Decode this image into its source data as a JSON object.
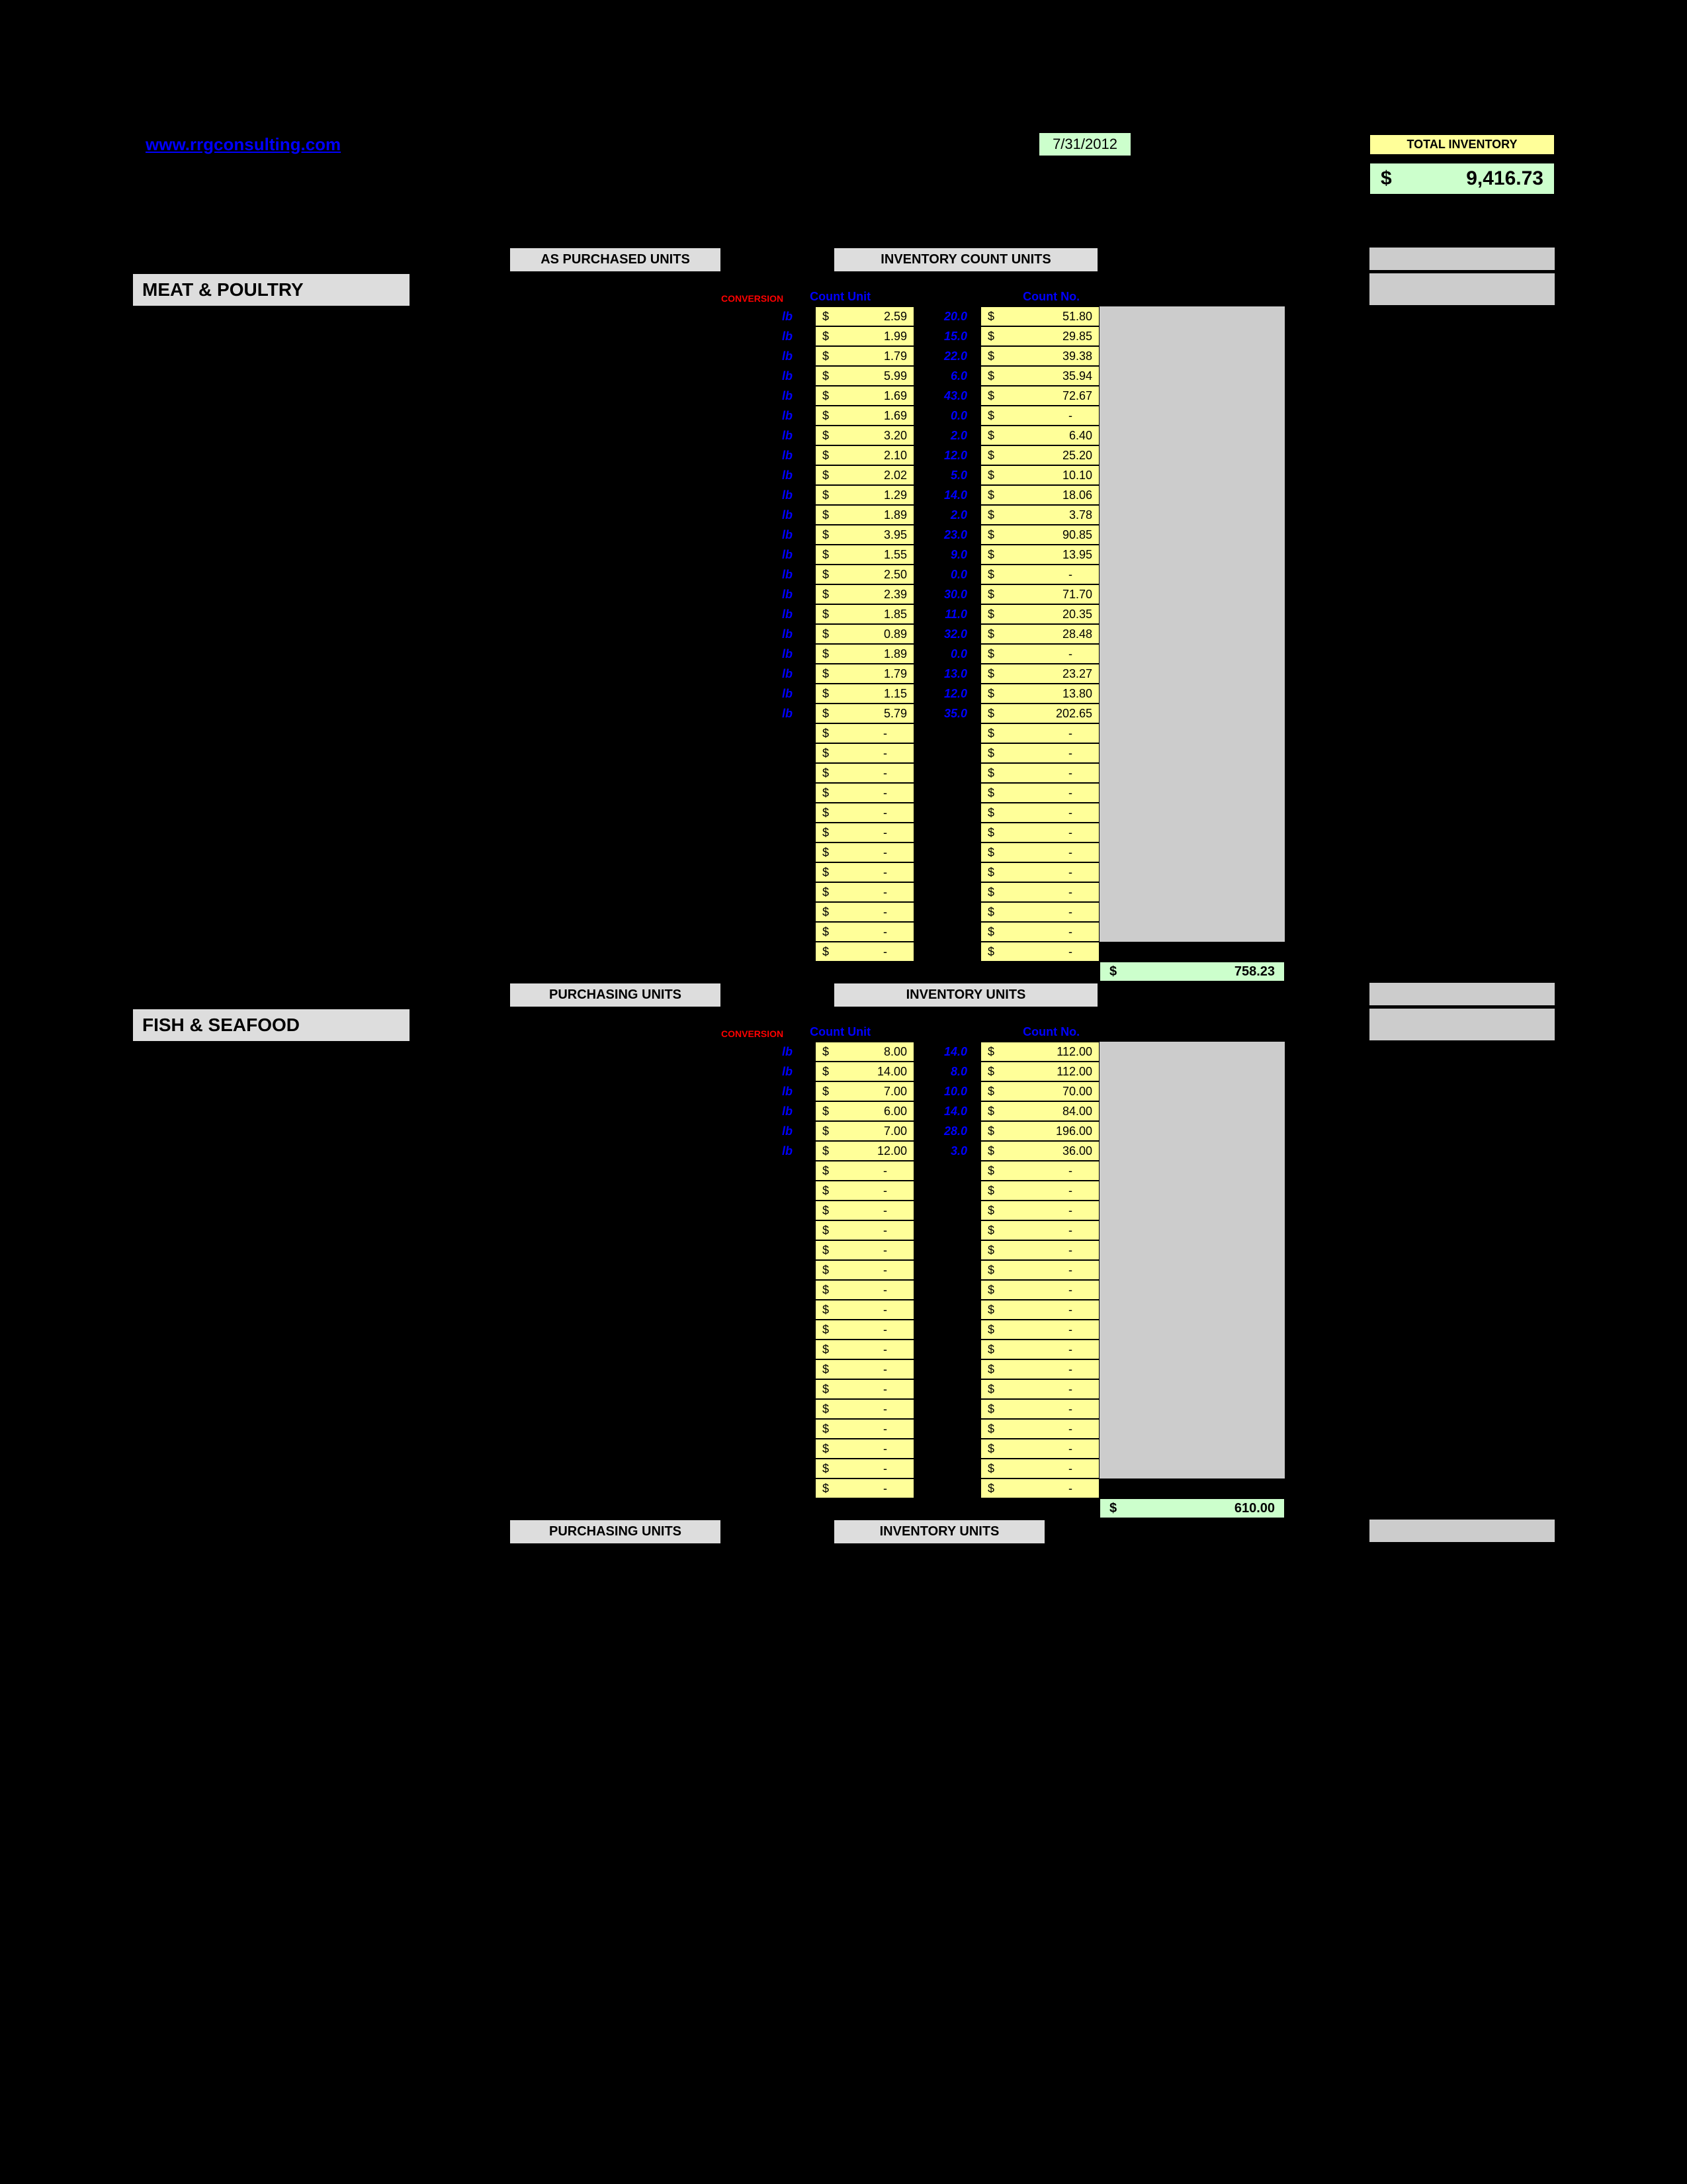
{
  "header": {
    "url": "www.rrgconsulting.com",
    "date": "7/31/2012",
    "total_inventory_label": "TOTAL INVENTORY",
    "total_inventory_value": "9,416.73"
  },
  "labels": {
    "as_purchased": "AS PURCHASED UNITS",
    "inv_count": "INVENTORY COUNT UNITS",
    "purchasing_units": "PURCHASING UNITS",
    "inventory_units": "INVENTORY UNITS",
    "conversion": "CONVERSION",
    "count_unit": "Count Unit",
    "count_no": "Count No."
  },
  "sections": [
    {
      "title": "MEAT & POULTRY",
      "header_left": "AS PURCHASED UNITS",
      "header_right": "INVENTORY COUNT UNITS",
      "subtotal": "758.23",
      "rows": [
        {
          "unit": "lb",
          "price": "2.59",
          "count": "20.0",
          "ext": "51.80"
        },
        {
          "unit": "lb",
          "price": "1.99",
          "count": "15.0",
          "ext": "29.85"
        },
        {
          "unit": "lb",
          "price": "1.79",
          "count": "22.0",
          "ext": "39.38"
        },
        {
          "unit": "lb",
          "price": "5.99",
          "count": "6.0",
          "ext": "35.94"
        },
        {
          "unit": "lb",
          "price": "1.69",
          "count": "43.0",
          "ext": "72.67"
        },
        {
          "unit": "lb",
          "price": "1.69",
          "count": "0.0",
          "ext": "-"
        },
        {
          "unit": "lb",
          "price": "3.20",
          "count": "2.0",
          "ext": "6.40"
        },
        {
          "unit": "lb",
          "price": "2.10",
          "count": "12.0",
          "ext": "25.20"
        },
        {
          "unit": "lb",
          "price": "2.02",
          "count": "5.0",
          "ext": "10.10"
        },
        {
          "unit": "lb",
          "price": "1.29",
          "count": "14.0",
          "ext": "18.06"
        },
        {
          "unit": "lb",
          "price": "1.89",
          "count": "2.0",
          "ext": "3.78"
        },
        {
          "unit": "lb",
          "price": "3.95",
          "count": "23.0",
          "ext": "90.85"
        },
        {
          "unit": "lb",
          "price": "1.55",
          "count": "9.0",
          "ext": "13.95"
        },
        {
          "unit": "lb",
          "price": "2.50",
          "count": "0.0",
          "ext": "-"
        },
        {
          "unit": "lb",
          "price": "2.39",
          "count": "30.0",
          "ext": "71.70"
        },
        {
          "unit": "lb",
          "price": "1.85",
          "count": "11.0",
          "ext": "20.35"
        },
        {
          "unit": "lb",
          "price": "0.89",
          "count": "32.0",
          "ext": "28.48"
        },
        {
          "unit": "lb",
          "price": "1.89",
          "count": "0.0",
          "ext": "-"
        },
        {
          "unit": "lb",
          "price": "1.79",
          "count": "13.0",
          "ext": "23.27"
        },
        {
          "unit": "lb",
          "price": "1.15",
          "count": "12.0",
          "ext": "13.80"
        },
        {
          "unit": "lb",
          "price": "5.79",
          "count": "35.0",
          "ext": "202.65"
        },
        {
          "unit": "",
          "price": "-",
          "count": "",
          "ext": "-"
        },
        {
          "unit": "",
          "price": "-",
          "count": "",
          "ext": "-"
        },
        {
          "unit": "",
          "price": "-",
          "count": "",
          "ext": "-"
        },
        {
          "unit": "",
          "price": "-",
          "count": "",
          "ext": "-"
        },
        {
          "unit": "",
          "price": "-",
          "count": "",
          "ext": "-"
        },
        {
          "unit": "",
          "price": "-",
          "count": "",
          "ext": "-"
        },
        {
          "unit": "",
          "price": "-",
          "count": "",
          "ext": "-"
        },
        {
          "unit": "",
          "price": "-",
          "count": "",
          "ext": "-"
        },
        {
          "unit": "",
          "price": "-",
          "count": "",
          "ext": "-"
        },
        {
          "unit": "",
          "price": "-",
          "count": "",
          "ext": "-"
        },
        {
          "unit": "",
          "price": "-",
          "count": "",
          "ext": "-"
        },
        {
          "unit": "",
          "price": "-",
          "count": "",
          "ext": "-"
        }
      ]
    },
    {
      "title": "FISH & SEAFOOD",
      "header_left": "PURCHASING UNITS",
      "header_right": "INVENTORY UNITS",
      "subtotal": "610.00",
      "rows": [
        {
          "unit": "lb",
          "price": "8.00",
          "count": "14.0",
          "ext": "112.00"
        },
        {
          "unit": "lb",
          "price": "14.00",
          "count": "8.0",
          "ext": "112.00"
        },
        {
          "unit": "lb",
          "price": "7.00",
          "count": "10.0",
          "ext": "70.00"
        },
        {
          "unit": "lb",
          "price": "6.00",
          "count": "14.0",
          "ext": "84.00"
        },
        {
          "unit": "lb",
          "price": "7.00",
          "count": "28.0",
          "ext": "196.00"
        },
        {
          "unit": "lb",
          "price": "12.00",
          "count": "3.0",
          "ext": "36.00"
        },
        {
          "unit": "",
          "price": "-",
          "count": "",
          "ext": "-"
        },
        {
          "unit": "",
          "price": "-",
          "count": "",
          "ext": "-"
        },
        {
          "unit": "",
          "price": "-",
          "count": "",
          "ext": "-"
        },
        {
          "unit": "",
          "price": "-",
          "count": "",
          "ext": "-"
        },
        {
          "unit": "",
          "price": "-",
          "count": "",
          "ext": "-"
        },
        {
          "unit": "",
          "price": "-",
          "count": "",
          "ext": "-"
        },
        {
          "unit": "",
          "price": "-",
          "count": "",
          "ext": "-"
        },
        {
          "unit": "",
          "price": "-",
          "count": "",
          "ext": "-"
        },
        {
          "unit": "",
          "price": "-",
          "count": "",
          "ext": "-"
        },
        {
          "unit": "",
          "price": "-",
          "count": "",
          "ext": "-"
        },
        {
          "unit": "",
          "price": "-",
          "count": "",
          "ext": "-"
        },
        {
          "unit": "",
          "price": "-",
          "count": "",
          "ext": "-"
        },
        {
          "unit": "",
          "price": "-",
          "count": "",
          "ext": "-"
        },
        {
          "unit": "",
          "price": "-",
          "count": "",
          "ext": "-"
        },
        {
          "unit": "",
          "price": "-",
          "count": "",
          "ext": "-"
        },
        {
          "unit": "",
          "price": "-",
          "count": "",
          "ext": "-"
        },
        {
          "unit": "",
          "price": "-",
          "count": "",
          "ext": "-"
        }
      ]
    }
  ],
  "footer_headers": {
    "left": "PURCHASING UNITS",
    "right": "INVENTORY UNITS"
  },
  "colors": {
    "yellow_fill": "#ffff99",
    "green_fill": "#ccffcc",
    "grey_header": "#dddddd",
    "grey_side": "#cccccc",
    "blue_text": "#0000ff",
    "red_text": "#ff0000",
    "black": "#000000"
  }
}
